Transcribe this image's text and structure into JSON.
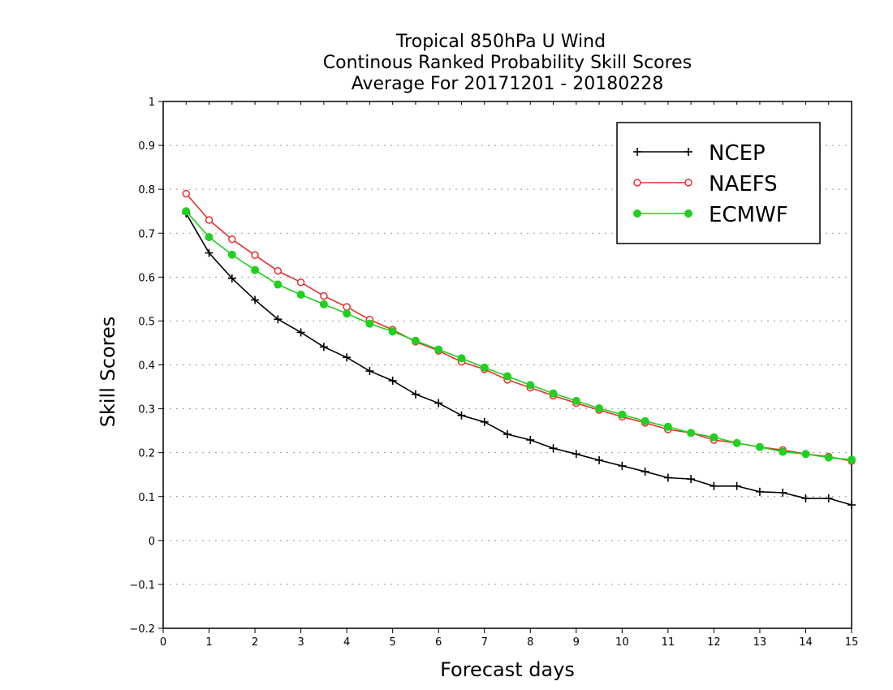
{
  "chart_data": {
    "type": "line",
    "title_lines": [
      "Tropical 850hPa U Wind",
      "Continous Ranked Probability Skill Scores",
      "Average For 20171201 - 20180228"
    ],
    "xlabel": "Forecast days",
    "ylabel": "Skill Scores",
    "xlim": [
      0,
      15
    ],
    "ylim": [
      -0.2,
      1
    ],
    "x_ticks": [
      "0",
      "1",
      "2",
      "3",
      "4",
      "5",
      "6",
      "7",
      "8",
      "9",
      "10",
      "11",
      "12",
      "13",
      "14",
      "15"
    ],
    "y_ticks": [
      "−0.2",
      "−0.1",
      "0",
      "0.1",
      "0.2",
      "0.3",
      "0.4",
      "0.5",
      "0.6",
      "0.7",
      "0.8",
      "0.9",
      "1"
    ],
    "grid": "horizontal-dotted",
    "legend_position": "top-right",
    "x": [
      0.5,
      1,
      1.5,
      2,
      2.5,
      3,
      3.5,
      4,
      4.5,
      5,
      5.5,
      6,
      6.5,
      7,
      7.5,
      8,
      8.5,
      9,
      9.5,
      10,
      10.5,
      11,
      11.5,
      12,
      12.5,
      13,
      13.5,
      14,
      14.5,
      15
    ],
    "series": [
      {
        "name": "NCEP",
        "color": "#000000",
        "marker": "plus",
        "values": [
          0.745,
          0.655,
          0.597,
          0.548,
          0.504,
          0.474,
          0.441,
          0.417,
          0.386,
          0.364,
          0.333,
          0.313,
          0.285,
          0.27,
          0.242,
          0.229,
          0.21,
          0.197,
          0.183,
          0.17,
          0.157,
          0.143,
          0.14,
          0.124,
          0.124,
          0.111,
          0.109,
          0.096,
          0.096,
          0.081
        ]
      },
      {
        "name": "NAEFS",
        "color": "#e83030",
        "marker": "open-circle",
        "values": [
          0.79,
          0.73,
          0.686,
          0.65,
          0.614,
          0.588,
          0.557,
          0.532,
          0.503,
          0.48,
          0.453,
          0.432,
          0.407,
          0.39,
          0.366,
          0.348,
          0.33,
          0.313,
          0.297,
          0.282,
          0.268,
          0.253,
          0.245,
          0.229,
          0.222,
          0.213,
          0.206,
          0.197,
          0.191,
          0.181
        ]
      },
      {
        "name": "ECMWF",
        "color": "#20d020",
        "marker": "filled-circle",
        "values": [
          0.75,
          0.691,
          0.651,
          0.616,
          0.583,
          0.56,
          0.538,
          0.517,
          0.494,
          0.476,
          0.455,
          0.435,
          0.415,
          0.394,
          0.374,
          0.354,
          0.335,
          0.318,
          0.301,
          0.287,
          0.272,
          0.259,
          0.245,
          0.235,
          0.222,
          0.213,
          0.202,
          0.197,
          0.189,
          0.184
        ]
      }
    ]
  }
}
